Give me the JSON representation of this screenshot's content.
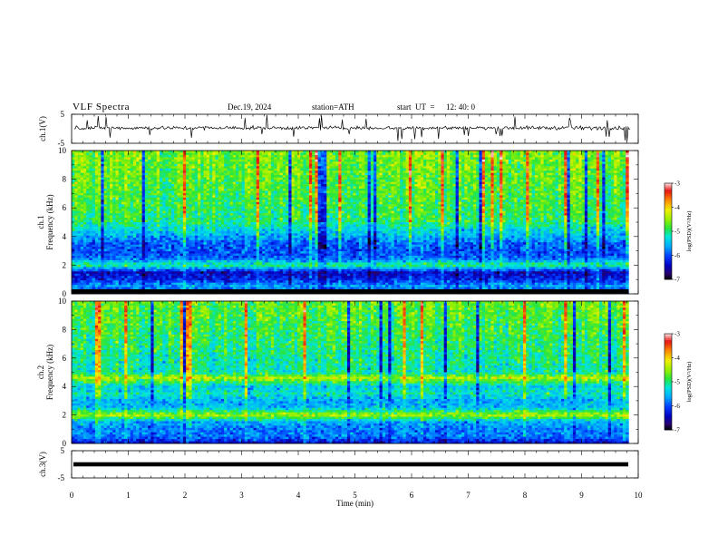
{
  "header": {
    "title": "VLF  Spectra",
    "date": "Dec.19, 2024",
    "station": "station=ATH",
    "start_ut_label": "start  UT  =",
    "start_ut_value": "12: 40: 0"
  },
  "chart_data": [
    {
      "type": "line",
      "panel": "ch1-waveform",
      "ylabel": "ch.1(V)",
      "ylim": [
        -5,
        5
      ],
      "yticks": [
        "5",
        "-5"
      ],
      "xlim": [
        0,
        10
      ],
      "series": [
        {
          "baseline": 0.3,
          "noise_amplitude": 1.1,
          "spike_amplitude": 4.5
        }
      ]
    },
    {
      "type": "heatmap",
      "panel": "ch1-spectrogram",
      "ylabel": "ch.1",
      "ylabel2": "Frequency  (kHz)",
      "ylim": [
        0,
        10
      ],
      "yticks": [
        "0",
        "2",
        "4",
        "6",
        "8",
        "10"
      ],
      "xlim": [
        0,
        9.83
      ],
      "colorbar": {
        "label": "log(PSD)(V²/Hz)",
        "range": [
          -7,
          -3
        ],
        "ticks": [
          "-3",
          "-4",
          "-5",
          "-6",
          "-7"
        ]
      },
      "profile": [
        {
          "f": 0.0,
          "v": -7.0
        },
        {
          "f": 0.2,
          "v": -6.2
        },
        {
          "f": 0.5,
          "v": -5.6
        },
        {
          "f": 1.0,
          "v": -6.2
        },
        {
          "f": 1.5,
          "v": -6.4
        },
        {
          "f": 2.0,
          "v": -5.0
        },
        {
          "f": 2.5,
          "v": -5.9
        },
        {
          "f": 3.0,
          "v": -6.0
        },
        {
          "f": 3.5,
          "v": -5.9
        },
        {
          "f": 4.0,
          "v": -5.6
        },
        {
          "f": 5.0,
          "v": -5.0
        },
        {
          "f": 7.0,
          "v": -4.8
        },
        {
          "f": 10.0,
          "v": -4.6
        }
      ]
    },
    {
      "type": "heatmap",
      "panel": "ch2-spectrogram",
      "ylabel": "ch.2",
      "ylabel2": "Frequency  (kHz)",
      "ylim": [
        0,
        10
      ],
      "yticks": [
        "0",
        "2",
        "4",
        "6",
        "8",
        "10"
      ],
      "xlim": [
        0,
        9.83
      ],
      "colorbar": {
        "label": "log(PSD)(V²/Hz)",
        "range": [
          -7,
          -3
        ],
        "ticks": [
          "-3",
          "-4",
          "-5",
          "-6",
          "-7"
        ]
      },
      "profile": [
        {
          "f": 0.0,
          "v": -6.4
        },
        {
          "f": 0.5,
          "v": -5.8
        },
        {
          "f": 1.0,
          "v": -5.8
        },
        {
          "f": 1.5,
          "v": -5.6
        },
        {
          "f": 2.0,
          "v": -4.4
        },
        {
          "f": 2.5,
          "v": -5.5
        },
        {
          "f": 3.0,
          "v": -5.6
        },
        {
          "f": 3.5,
          "v": -5.2
        },
        {
          "f": 4.0,
          "v": -5.4
        },
        {
          "f": 4.6,
          "v": -4.4
        },
        {
          "f": 5.0,
          "v": -5.2
        },
        {
          "f": 7.0,
          "v": -5.0
        },
        {
          "f": 10.0,
          "v": -4.7
        }
      ]
    },
    {
      "type": "line",
      "panel": "ch3-waveform",
      "ylabel": "ch.3(V)",
      "ylim": [
        -5,
        5
      ],
      "yticks": [
        "5",
        "-5"
      ],
      "xlim": [
        0,
        10
      ],
      "series": [
        {
          "baseline": 0.0,
          "noise_amplitude": 0.3
        }
      ]
    }
  ],
  "time_axis": {
    "label": "Time  (min)",
    "range": [
      0,
      10
    ],
    "ticks": [
      "0",
      "1",
      "2",
      "3",
      "4",
      "5",
      "6",
      "7",
      "8",
      "9",
      "10"
    ]
  }
}
